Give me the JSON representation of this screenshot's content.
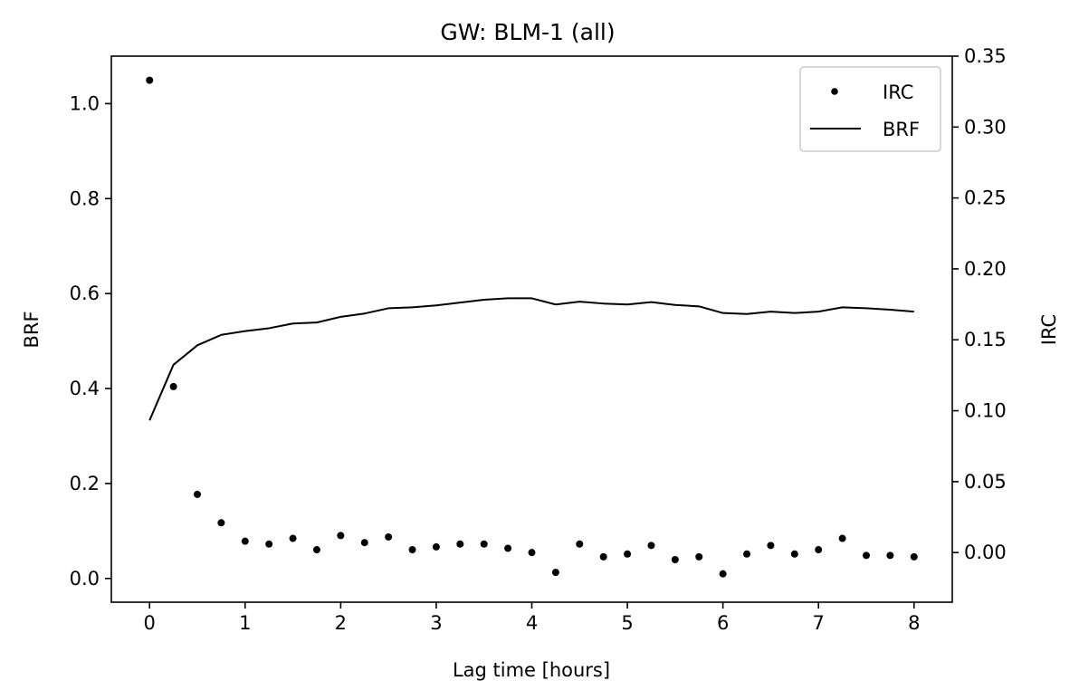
{
  "chart_data": {
    "type": "line",
    "title": "GW: BLM-1 (all)",
    "xlabel": "Lag time [hours]",
    "ylabel": "BRF",
    "y2label": "IRC",
    "xlim": [
      -0.4,
      8.4
    ],
    "ylim": [
      -0.05,
      1.1
    ],
    "y2lim": [
      -0.035,
      0.35
    ],
    "x_ticks": [
      0,
      1,
      2,
      3,
      4,
      5,
      6,
      7,
      8
    ],
    "y_ticks": [
      0.0,
      0.2,
      0.4,
      0.6,
      0.8,
      1.0
    ],
    "y2_ticks": [
      0.0,
      0.05,
      0.1,
      0.15,
      0.2,
      0.25,
      0.3,
      0.35
    ],
    "x_tick_labels": [
      "0",
      "1",
      "2",
      "3",
      "4",
      "5",
      "6",
      "7",
      "8"
    ],
    "y_tick_labels": [
      "0.0",
      "0.2",
      "0.4",
      "0.6",
      "0.8",
      "1.0"
    ],
    "y2_tick_labels": [
      "0.00",
      "0.05",
      "0.10",
      "0.15",
      "0.20",
      "0.25",
      "0.30",
      "0.35"
    ],
    "legend": {
      "placement": "top-right",
      "entries": [
        "IRC",
        "BRF"
      ]
    },
    "grid": false,
    "x": [
      0,
      0.25,
      0.5,
      0.75,
      1,
      1.25,
      1.5,
      1.75,
      2,
      2.25,
      2.5,
      2.75,
      3,
      3.25,
      3.5,
      3.75,
      4,
      4.25,
      4.5,
      4.75,
      5,
      5.25,
      5.5,
      5.75,
      6,
      6.25,
      6.5,
      6.75,
      7,
      7.25,
      7.5,
      7.75,
      8
    ],
    "series": [
      {
        "name": "IRC",
        "axis": "right",
        "style": "scatter",
        "color": "#000000",
        "values": [
          0.333,
          0.117,
          0.041,
          0.021,
          0.008,
          0.006,
          0.01,
          0.002,
          0.012,
          0.007,
          0.011,
          0.002,
          0.004,
          0.006,
          0.006,
          0.003,
          0.0,
          -0.014,
          0.006,
          -0.003,
          -0.001,
          0.005,
          -0.005,
          -0.003,
          -0.015,
          -0.001,
          0.005,
          -0.001,
          0.002,
          0.01,
          -0.002,
          -0.002,
          -0.003
        ]
      },
      {
        "name": "BRF",
        "axis": "left",
        "style": "line",
        "color": "#000000",
        "values": [
          0.333,
          0.45,
          0.491,
          0.513,
          0.521,
          0.527,
          0.537,
          0.539,
          0.551,
          0.558,
          0.569,
          0.571,
          0.575,
          0.581,
          0.587,
          0.59,
          0.59,
          0.577,
          0.583,
          0.579,
          0.577,
          0.582,
          0.576,
          0.573,
          0.559,
          0.557,
          0.562,
          0.559,
          0.562,
          0.571,
          0.569,
          0.566,
          0.562
        ]
      }
    ]
  }
}
